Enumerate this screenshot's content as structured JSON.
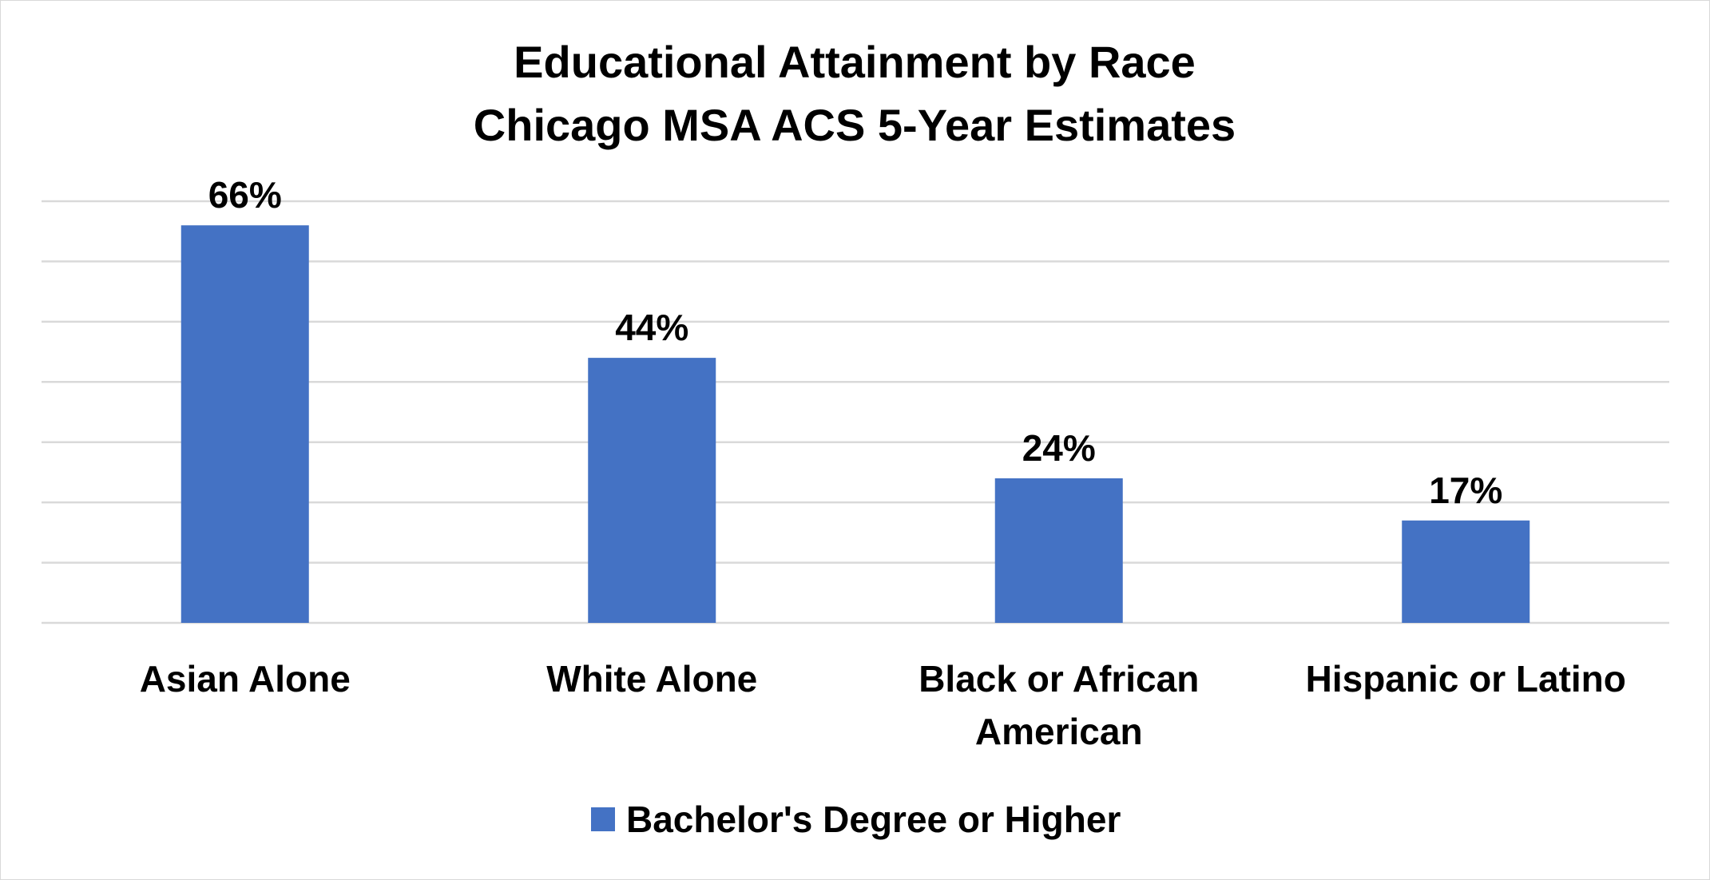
{
  "chart_data": {
    "type": "bar",
    "title": "Educational Attainment by Race",
    "subtitle": "Chicago MSA ACS 5-Year Estimates",
    "categories": [
      [
        "Asian Alone"
      ],
      [
        "White Alone"
      ],
      [
        "Black or African",
        "American"
      ],
      [
        "Hispanic or Latino"
      ]
    ],
    "series": [
      {
        "name": "Bachelor's Degree or Higher",
        "values": [
          66,
          44,
          24,
          17
        ],
        "labels": [
          "66%",
          "44%",
          "24%",
          "17%"
        ],
        "color": "#4472C4"
      }
    ],
    "ylim": [
      0,
      70
    ],
    "grid": true,
    "gridline_step": 10,
    "legend_position": "bottom"
  }
}
